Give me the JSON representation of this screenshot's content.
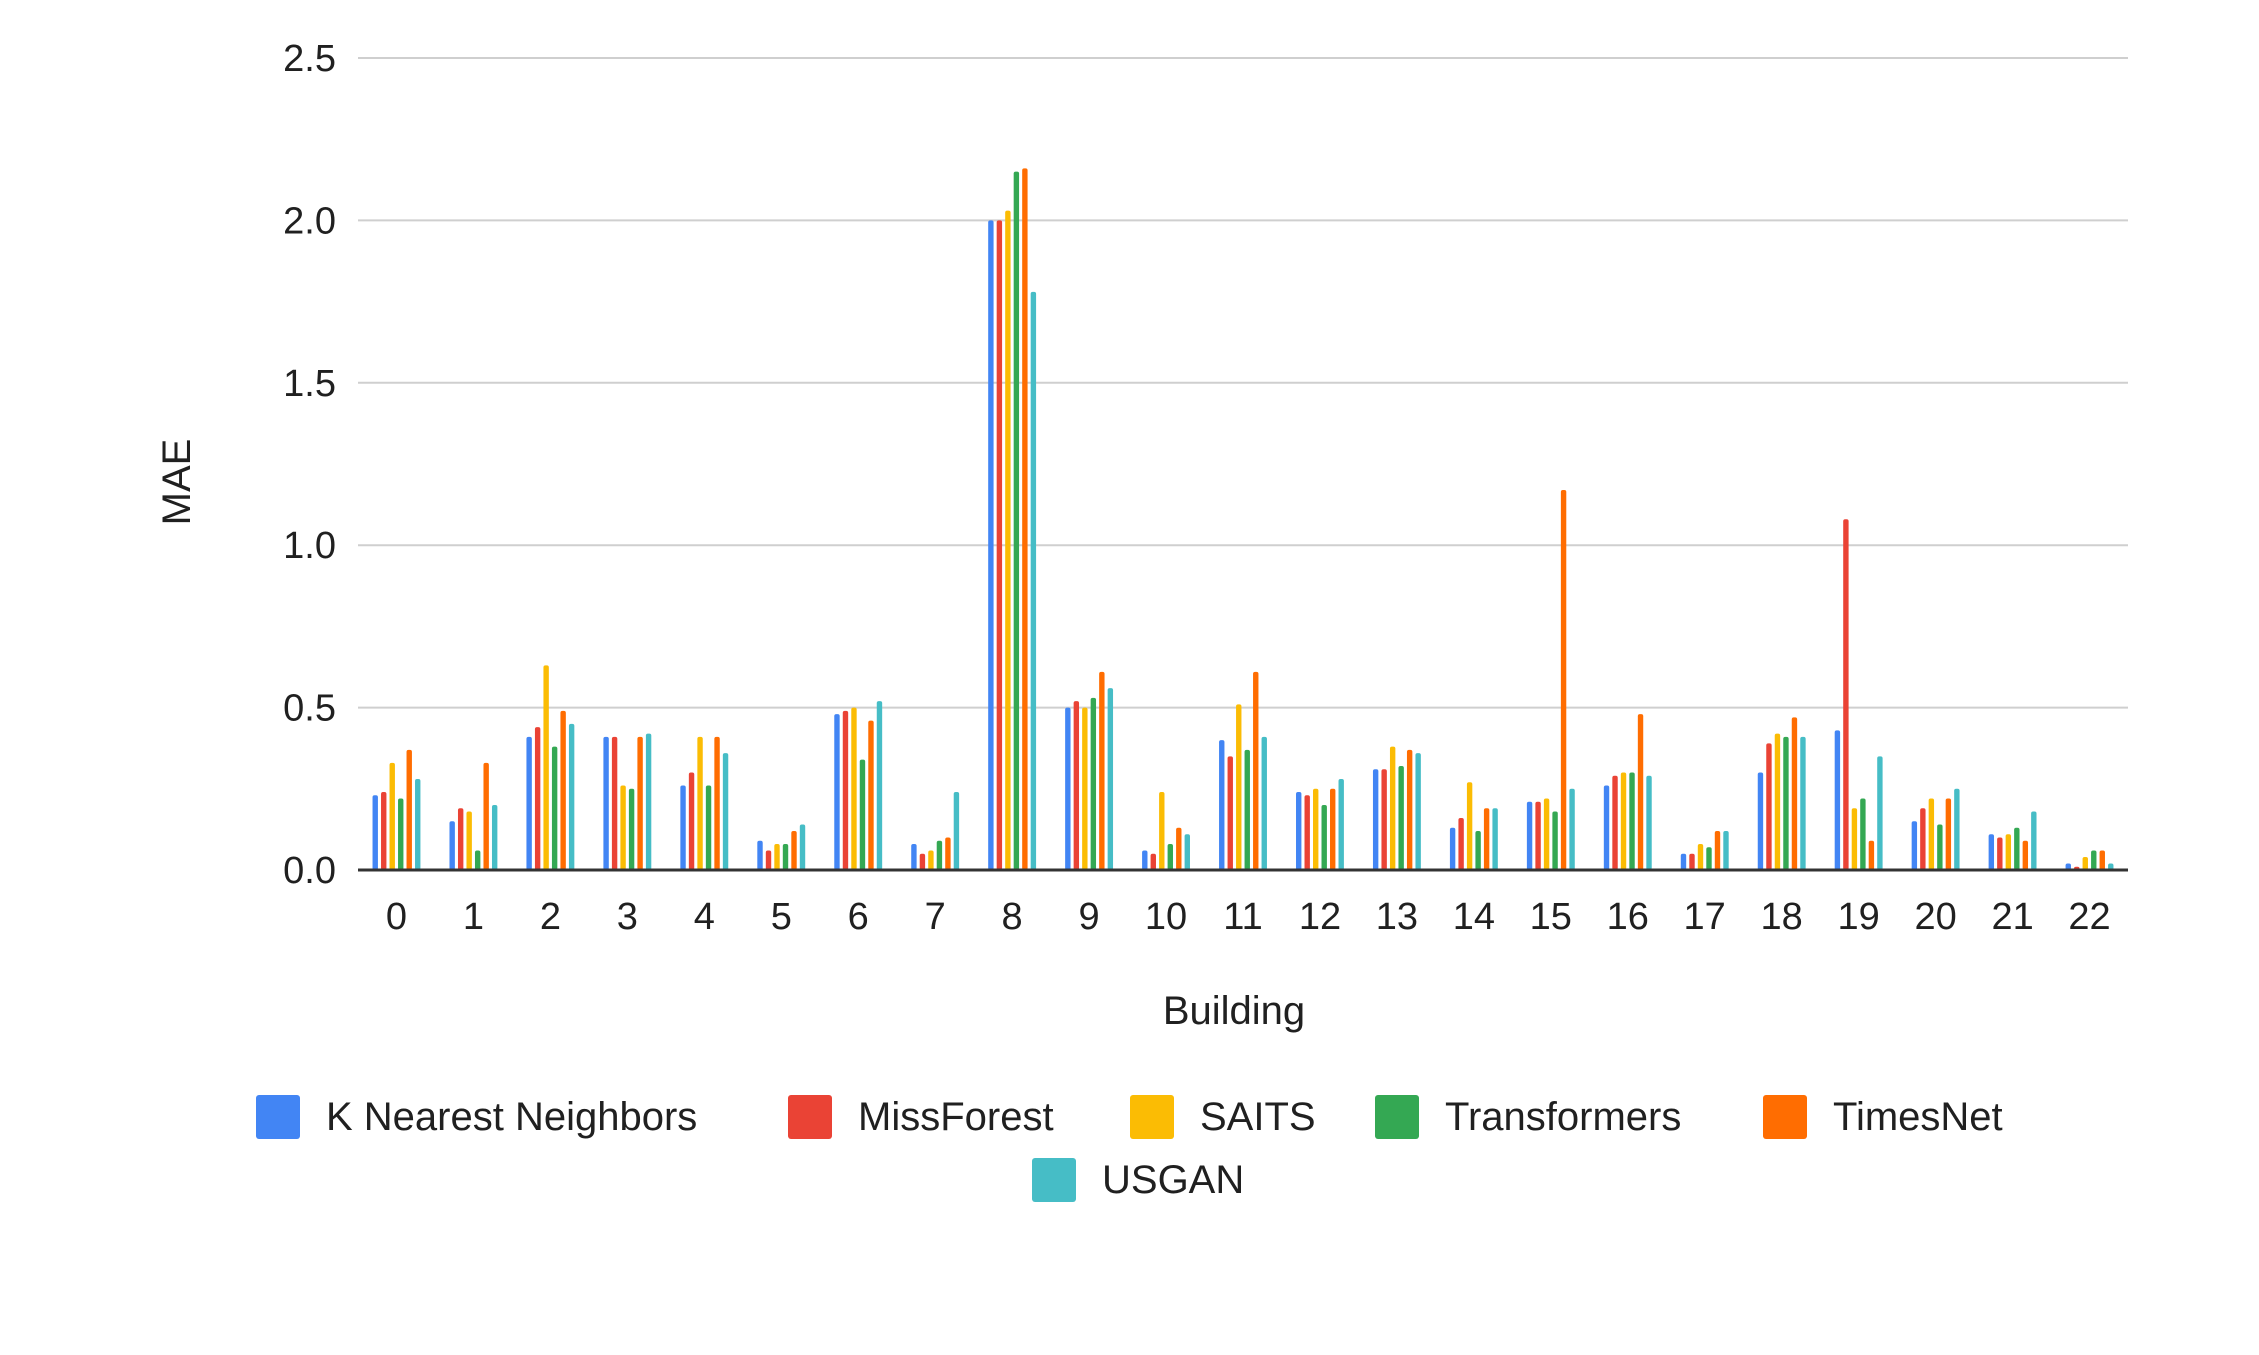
{
  "chart_data": {
    "type": "bar",
    "title": "",
    "xlabel": "Building",
    "ylabel": "MAE",
    "ylim": [
      0,
      2.5
    ],
    "yticks": [
      "0.0",
      "0.5",
      "1.0",
      "1.5",
      "2.0",
      "2.5"
    ],
    "grid": true,
    "legend_position": "bottom",
    "categories": [
      "0",
      "1",
      "2",
      "3",
      "4",
      "5",
      "6",
      "7",
      "8",
      "9",
      "10",
      "11",
      "12",
      "13",
      "14",
      "15",
      "16",
      "17",
      "18",
      "19",
      "20",
      "21",
      "22"
    ],
    "series": [
      {
        "name": "K Nearest Neighbors",
        "color": "#4285F4",
        "values": [
          0.23,
          0.15,
          0.41,
          0.41,
          0.26,
          0.09,
          0.48,
          0.08,
          2.0,
          0.5,
          0.06,
          0.4,
          0.24,
          0.31,
          0.13,
          0.21,
          0.26,
          0.05,
          0.3,
          0.43,
          0.15,
          0.11,
          0.02
        ]
      },
      {
        "name": "MissForest",
        "color": "#EA4335",
        "values": [
          0.24,
          0.19,
          0.44,
          0.41,
          0.3,
          0.06,
          0.49,
          0.05,
          2.0,
          0.52,
          0.05,
          0.35,
          0.23,
          0.31,
          0.16,
          0.21,
          0.29,
          0.05,
          0.39,
          1.08,
          0.19,
          0.1,
          0.01
        ]
      },
      {
        "name": "SAITS",
        "color": "#FBBC04",
        "values": [
          0.33,
          0.18,
          0.63,
          0.26,
          0.41,
          0.08,
          0.5,
          0.06,
          2.03,
          0.5,
          0.24,
          0.51,
          0.25,
          0.38,
          0.27,
          0.22,
          0.3,
          0.08,
          0.42,
          0.19,
          0.22,
          0.11,
          0.04
        ]
      },
      {
        "name": "Transformers",
        "color": "#34A853",
        "values": [
          0.22,
          0.06,
          0.38,
          0.25,
          0.26,
          0.08,
          0.34,
          0.09,
          2.15,
          0.53,
          0.08,
          0.37,
          0.2,
          0.32,
          0.12,
          0.18,
          0.3,
          0.07,
          0.41,
          0.22,
          0.14,
          0.13,
          0.06
        ]
      },
      {
        "name": "TimesNet",
        "color": "#FF6D01",
        "values": [
          0.37,
          0.33,
          0.49,
          0.41,
          0.41,
          0.12,
          0.46,
          0.1,
          2.16,
          0.61,
          0.13,
          0.61,
          0.25,
          0.37,
          0.19,
          1.17,
          0.48,
          0.12,
          0.47,
          0.09,
          0.22,
          0.09,
          0.06
        ]
      },
      {
        "name": "USGAN",
        "color": "#46BDC6",
        "values": [
          0.28,
          0.2,
          0.45,
          0.42,
          0.36,
          0.14,
          0.52,
          0.24,
          1.78,
          0.56,
          0.11,
          0.41,
          0.28,
          0.36,
          0.19,
          0.25,
          0.29,
          0.12,
          0.41,
          0.35,
          0.25,
          0.18,
          0.02
        ]
      }
    ]
  }
}
